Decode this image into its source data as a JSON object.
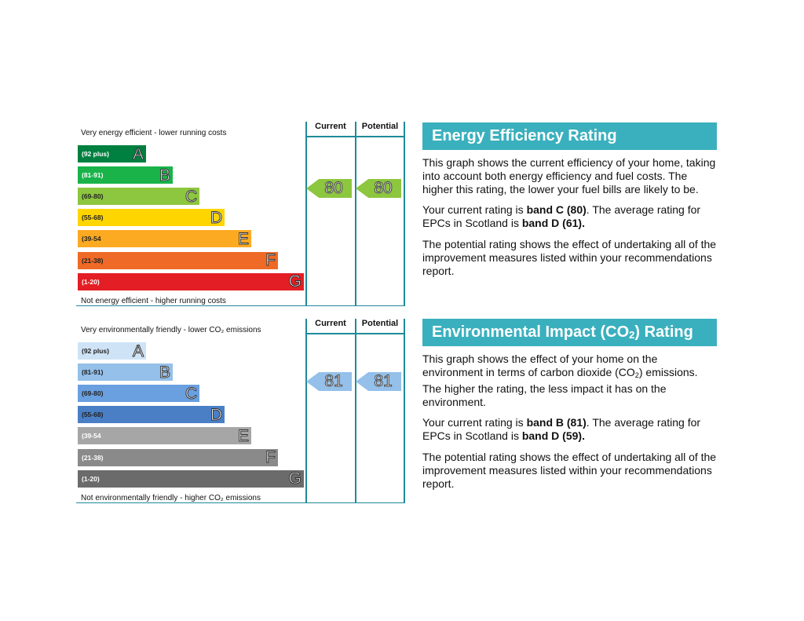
{
  "energy": {
    "top_label": "Very energy efficient - lower running costs",
    "bottom_label": "Not energy efficient - higher running costs",
    "col_current": "Current",
    "col_potential": "Potential",
    "bands": [
      {
        "range": "(92 plus)",
        "letter": "A",
        "color": "#008040"
      },
      {
        "range": "(81-91)",
        "letter": "B",
        "color": "#19b34a"
      },
      {
        "range": "(69-80)",
        "letter": "C",
        "color": "#8dc63f"
      },
      {
        "range": "(55-68)",
        "letter": "D",
        "color": "#ffd500"
      },
      {
        "range": "(39-54",
        "letter": "E",
        "color": "#fcaa22"
      },
      {
        "range": "(21-38)",
        "letter": "F",
        "color": "#ef6a26"
      },
      {
        "range": "(1-20)",
        "letter": "G",
        "color": "#e31e24"
      }
    ],
    "current": "80",
    "potential": "80",
    "arrow_color": "#8dc63f"
  },
  "environment": {
    "top_label": "Very environmentally friendly - lower CO₂ emissions",
    "bottom_label": "Not environmentally friendly - higher CO₂ emissions",
    "col_current": "Current",
    "col_potential": "Potential",
    "bands": [
      {
        "range": "(92 plus)",
        "letter": "A",
        "color": "#cfe3f6"
      },
      {
        "range": "(81-91)",
        "letter": "B",
        "color": "#94c0ea"
      },
      {
        "range": "(69-80)",
        "letter": "C",
        "color": "#6a9fe0"
      },
      {
        "range": "(55-68)",
        "letter": "D",
        "color": "#4a7fc6"
      },
      {
        "range": "(39-54",
        "letter": "E",
        "color": "#a6a6a6"
      },
      {
        "range": "(21-38)",
        "letter": "F",
        "color": "#8a8a8a"
      },
      {
        "range": "(1-20)",
        "letter": "G",
        "color": "#6b6b6b"
      }
    ],
    "current": "81",
    "potential": "81",
    "arrow_color": "#94c0ea"
  },
  "panel_energy": {
    "title": "Energy Efficiency Rating",
    "p1": "This graph shows the current efficiency of your home, taking into account both energy efficiency and fuel costs. The higher this rating, the lower your fuel bills are likely to be.",
    "p2_pre": "Your current rating is ",
    "p2_bold1": "band C (80)",
    "p2_mid": ". The average rating for EPCs in Scotland is ",
    "p2_bold2": "band D (61).",
    "p3": "The potential rating shows the effect of undertaking all of the improvement measures listed within your recommendations report."
  },
  "panel_env": {
    "title_pre": "Environmental Impact (CO",
    "title_sub": "2",
    "title_post": ") Rating",
    "p1_pre": "This graph shows the effect of your home on the environment in terms of carbon dioxide (CO",
    "p1_sub": "2",
    "p1_post": ") emissions. The higher the rating, the less impact it has on the environment.",
    "p2_pre": "Your current rating is ",
    "p2_bold1": "band B (81)",
    "p2_mid": ". The average rating for EPCs in Scotland is ",
    "p2_bold2": "band D (59).",
    "p3": "The potential rating shows the effect of undertaking all of the improvement measures listed within your recommendations report."
  }
}
